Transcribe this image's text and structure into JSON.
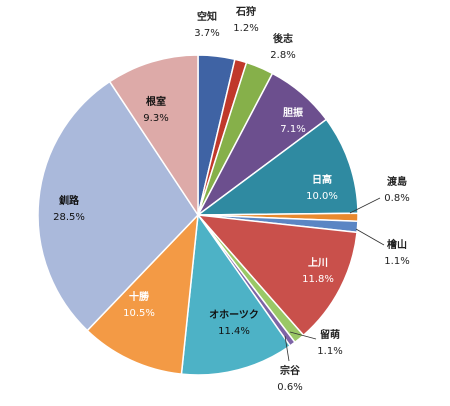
{
  "chart_data": {
    "type": "pie",
    "start_angle_deg": 0,
    "direction": "clockwise",
    "slices": [
      {
        "label": "空知",
        "value": 3.7,
        "value_label": "3.7%",
        "color": "#3f63a4"
      },
      {
        "label": "石狩",
        "value": 1.2,
        "value_label": "1.2%",
        "color": "#c0392b"
      },
      {
        "label": "後志",
        "value": 2.8,
        "value_label": "2.8%",
        "color": "#86b04a"
      },
      {
        "label": "胆振",
        "value": 7.1,
        "value_label": "7.1%",
        "color": "#6c4f8e"
      },
      {
        "label": "日高",
        "value": 10.0,
        "value_label": "10.0%",
        "color": "#2f8aa1"
      },
      {
        "label": "渡島",
        "value": 0.8,
        "value_label": "0.8%",
        "color": "#e8892e"
      },
      {
        "label": "檜山",
        "value": 1.1,
        "value_label": "1.1%",
        "color": "#5b86c4"
      },
      {
        "label": "上川",
        "value": 11.8,
        "value_label": "11.8%",
        "color": "#c9504b"
      },
      {
        "label": "留萌",
        "value": 1.1,
        "value_label": "1.1%",
        "color": "#9ac866"
      },
      {
        "label": "宗谷",
        "value": 0.6,
        "value_label": "0.6%",
        "color": "#7d64a6"
      },
      {
        "label": "オホーツク",
        "value": 11.4,
        "value_label": "11.4%",
        "color": "#4db2c6"
      },
      {
        "label": "十勝",
        "value": 10.5,
        "value_label": "10.5%",
        "color": "#f39a45"
      },
      {
        "label": "釧路",
        "value": 28.5,
        "value_label": "28.5%",
        "color": "#aab9db"
      },
      {
        "label": "根室",
        "value": 9.3,
        "value_label": "9.3%",
        "color": "#ddaaa8"
      }
    ]
  }
}
